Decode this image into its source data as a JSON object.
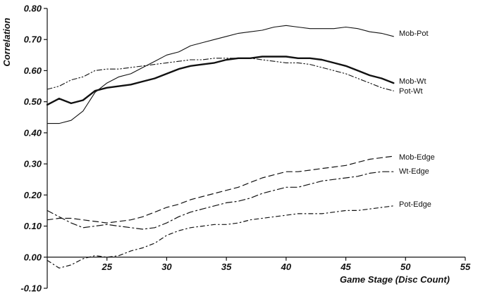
{
  "chart_data": {
    "type": "line",
    "title": "",
    "xlabel": "Game Stage (Disc Count)",
    "ylabel": "Correlation",
    "xlim": [
      20,
      55
    ],
    "ylim": [
      -0.1,
      0.8
    ],
    "x_ticks": [
      "25",
      "30",
      "35",
      "40",
      "45",
      "50",
      "55"
    ],
    "y_ticks": [
      "-0.10",
      "0.00",
      "0.10",
      "0.20",
      "0.30",
      "0.40",
      "0.50",
      "0.60",
      "0.70",
      "0.80"
    ],
    "grid": false,
    "legend": "inline labels at right end of series",
    "series": [
      {
        "name": "Mob-Pot",
        "style": "solid-thin",
        "x": [
          20,
          21,
          22,
          23,
          24,
          25,
          26,
          27,
          28,
          29,
          30,
          31,
          32,
          33,
          34,
          35,
          36,
          37,
          38,
          39,
          40,
          41,
          42,
          43,
          44,
          45,
          46,
          47,
          48,
          49
        ],
        "values": [
          0.43,
          0.43,
          0.44,
          0.47,
          0.53,
          0.56,
          0.58,
          0.59,
          0.61,
          0.63,
          0.65,
          0.66,
          0.68,
          0.69,
          0.7,
          0.71,
          0.72,
          0.725,
          0.73,
          0.74,
          0.745,
          0.74,
          0.735,
          0.735,
          0.735,
          0.74,
          0.735,
          0.725,
          0.72,
          0.71
        ]
      },
      {
        "name": "Mob-Wt",
        "style": "solid-thick",
        "x": [
          20,
          21,
          22,
          23,
          24,
          25,
          26,
          27,
          28,
          29,
          30,
          31,
          32,
          33,
          34,
          35,
          36,
          37,
          38,
          39,
          40,
          41,
          42,
          43,
          44,
          45,
          46,
          47,
          48,
          49
        ],
        "values": [
          0.49,
          0.51,
          0.495,
          0.505,
          0.535,
          0.545,
          0.55,
          0.555,
          0.565,
          0.575,
          0.59,
          0.605,
          0.615,
          0.62,
          0.625,
          0.635,
          0.64,
          0.64,
          0.645,
          0.645,
          0.645,
          0.64,
          0.64,
          0.635,
          0.625,
          0.615,
          0.6,
          0.585,
          0.575,
          0.56
        ]
      },
      {
        "name": "Pot-Wt",
        "style": "dash-dot-dot",
        "x": [
          20,
          21,
          22,
          23,
          24,
          25,
          26,
          27,
          28,
          29,
          30,
          31,
          32,
          33,
          34,
          35,
          36,
          37,
          38,
          39,
          40,
          41,
          42,
          43,
          44,
          45,
          46,
          47,
          48,
          49
        ],
        "values": [
          0.54,
          0.55,
          0.57,
          0.58,
          0.6,
          0.605,
          0.605,
          0.61,
          0.615,
          0.62,
          0.625,
          0.63,
          0.635,
          0.635,
          0.64,
          0.64,
          0.64,
          0.64,
          0.635,
          0.63,
          0.625,
          0.625,
          0.62,
          0.61,
          0.6,
          0.59,
          0.575,
          0.56,
          0.545,
          0.535
        ]
      },
      {
        "name": "Mob-Edge",
        "style": "dashed",
        "x": [
          20,
          21,
          22,
          23,
          24,
          25,
          26,
          27,
          28,
          29,
          30,
          31,
          32,
          33,
          34,
          35,
          36,
          37,
          38,
          39,
          40,
          41,
          42,
          43,
          44,
          45,
          46,
          47,
          48,
          49
        ],
        "values": [
          0.12,
          0.125,
          0.125,
          0.12,
          0.115,
          0.11,
          0.115,
          0.12,
          0.13,
          0.145,
          0.16,
          0.17,
          0.185,
          0.195,
          0.205,
          0.215,
          0.225,
          0.24,
          0.255,
          0.265,
          0.275,
          0.275,
          0.28,
          0.285,
          0.29,
          0.295,
          0.305,
          0.315,
          0.32,
          0.325
        ]
      },
      {
        "name": "Wt-Edge",
        "style": "dash-dot",
        "x": [
          20,
          21,
          22,
          23,
          24,
          25,
          26,
          27,
          28,
          29,
          30,
          31,
          32,
          33,
          34,
          35,
          36,
          37,
          38,
          39,
          40,
          41,
          42,
          43,
          44,
          45,
          46,
          47,
          48,
          49
        ],
        "values": [
          0.15,
          0.13,
          0.11,
          0.095,
          0.1,
          0.105,
          0.1,
          0.095,
          0.09,
          0.095,
          0.11,
          0.13,
          0.145,
          0.155,
          0.165,
          0.175,
          0.18,
          0.19,
          0.205,
          0.215,
          0.225,
          0.225,
          0.235,
          0.245,
          0.25,
          0.255,
          0.26,
          0.27,
          0.275,
          0.275
        ]
      },
      {
        "name": "Pot-Edge",
        "style": "dash-dot-loose",
        "x": [
          20,
          21,
          22,
          23,
          24,
          25,
          26,
          27,
          28,
          29,
          30,
          31,
          32,
          33,
          34,
          35,
          36,
          37,
          38,
          39,
          40,
          41,
          42,
          43,
          44,
          45,
          46,
          47,
          48,
          49
        ],
        "values": [
          -0.01,
          -0.035,
          -0.025,
          -0.005,
          0.005,
          0.0,
          0.005,
          0.02,
          0.03,
          0.045,
          0.07,
          0.085,
          0.095,
          0.1,
          0.105,
          0.105,
          0.11,
          0.12,
          0.125,
          0.13,
          0.135,
          0.14,
          0.14,
          0.14,
          0.145,
          0.15,
          0.15,
          0.155,
          0.16,
          0.165
        ]
      }
    ],
    "series_labels": [
      {
        "text": "Mob-Pot",
        "series": "Mob-Pot"
      },
      {
        "text": "Mob-Wt",
        "series": "Mob-Wt"
      },
      {
        "text": "Pot-Wt",
        "series": "Pot-Wt"
      },
      {
        "text": "Mob-Edge",
        "series": "Mob-Edge"
      },
      {
        "text": "Wt-Edge",
        "series": "Wt-Edge"
      },
      {
        "text": "Pot-Edge",
        "series": "Pot-Edge"
      }
    ]
  }
}
